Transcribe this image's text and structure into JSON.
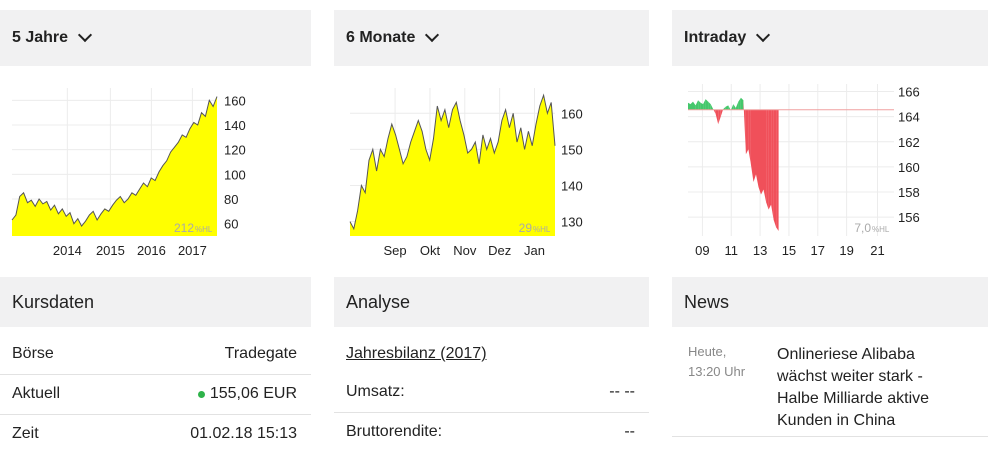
{
  "charts": [
    {
      "dropdown_label": "5 Jahre",
      "type": "area",
      "fill": "#ffff00",
      "line_color": "#555555",
      "x_ticks": [
        "2014",
        "2015",
        "2016",
        "2017"
      ],
      "y_ticks": [
        "60",
        "80",
        "100",
        "120",
        "140",
        "160"
      ],
      "ylim": [
        50,
        170
      ],
      "watermark": "212",
      "watermark_unit": "%HL",
      "series": [
        63,
        67,
        82,
        85,
        77,
        79,
        74,
        80,
        76,
        78,
        71,
        75,
        68,
        72,
        66,
        69,
        60,
        64,
        58,
        62,
        67,
        70,
        63,
        68,
        72,
        70,
        75,
        79,
        82,
        77,
        80,
        85,
        83,
        88,
        93,
        90,
        97,
        95,
        102,
        107,
        111,
        118,
        122,
        126,
        132,
        130,
        137,
        142,
        140,
        150,
        147,
        160,
        155,
        163
      ]
    },
    {
      "dropdown_label": "6 Monate",
      "type": "area",
      "fill": "#ffff00",
      "line_color": "#555555",
      "x_ticks": [
        "Sep",
        "Okt",
        "Nov",
        "Dez",
        "Jan"
      ],
      "y_ticks": [
        "130",
        "140",
        "150",
        "160"
      ],
      "ylim": [
        126,
        167
      ],
      "watermark": "29",
      "watermark_unit": "%HL",
      "series": [
        130,
        128,
        133,
        140,
        138,
        147,
        150,
        144,
        150,
        148,
        153,
        157,
        154,
        150,
        146,
        148,
        152,
        155,
        158,
        155,
        150,
        147,
        153,
        162,
        158,
        161,
        156,
        161,
        163,
        158,
        154,
        149,
        150,
        152,
        146,
        154,
        150,
        153,
        149,
        152,
        158,
        161,
        156,
        160,
        152,
        156,
        150,
        155,
        151,
        157,
        162,
        165,
        160,
        163,
        151
      ]
    },
    {
      "dropdown_label": "Intraday",
      "type": "baseline-area",
      "pos_color": "#44c76b",
      "neg_color": "#f0505a",
      "baseline_color": "#f0a0a0",
      "x_ticks": [
        "09",
        "11",
        "13",
        "15",
        "17",
        "19",
        "21"
      ],
      "y_ticks": [
        "156",
        "158",
        "160",
        "162",
        "164",
        "166"
      ],
      "ylim": [
        154.5,
        166.6
      ],
      "baseline": 164.55,
      "watermark": "7,0",
      "watermark_unit": "%HL",
      "series": [
        165.1,
        165.0,
        165.2,
        164.9,
        165.3,
        165.1,
        165.0,
        165.4,
        165.2,
        165.0,
        164.6,
        164.2,
        163.4,
        164.0,
        164.6,
        164.8,
        164.9,
        164.5,
        165.0,
        164.7,
        165.2,
        165.5,
        165.3,
        161.0,
        161.4,
        160.2,
        158.8,
        159.4,
        158.4,
        157.8,
        158.2,
        157.2,
        156.6,
        157.0,
        155.8,
        155.2,
        154.9
      ]
    }
  ],
  "kursdaten": {
    "title": "Kursdaten",
    "rows": [
      {
        "label": "Börse",
        "value": "Tradegate"
      },
      {
        "label": "Aktuell",
        "value": "155,06 EUR"
      },
      {
        "label": "Zeit",
        "value": "01.02.18 15:13"
      }
    ]
  },
  "analyse": {
    "title": "Analyse",
    "link_label": "Jahresbilanz (2017)",
    "rows": [
      {
        "label": "Umsatz:",
        "value": "-- --"
      },
      {
        "label": "Bruttorendite:",
        "value": "--"
      }
    ]
  },
  "news": {
    "title": "News",
    "items": [
      {
        "time_day": "Heute,",
        "time_clock": "13:20 Uhr",
        "text": [
          "Onlineriese Alibaba",
          "wächst weiter stark -",
          "Halbe Milliarde aktive",
          "Kunden in China"
        ]
      }
    ]
  }
}
